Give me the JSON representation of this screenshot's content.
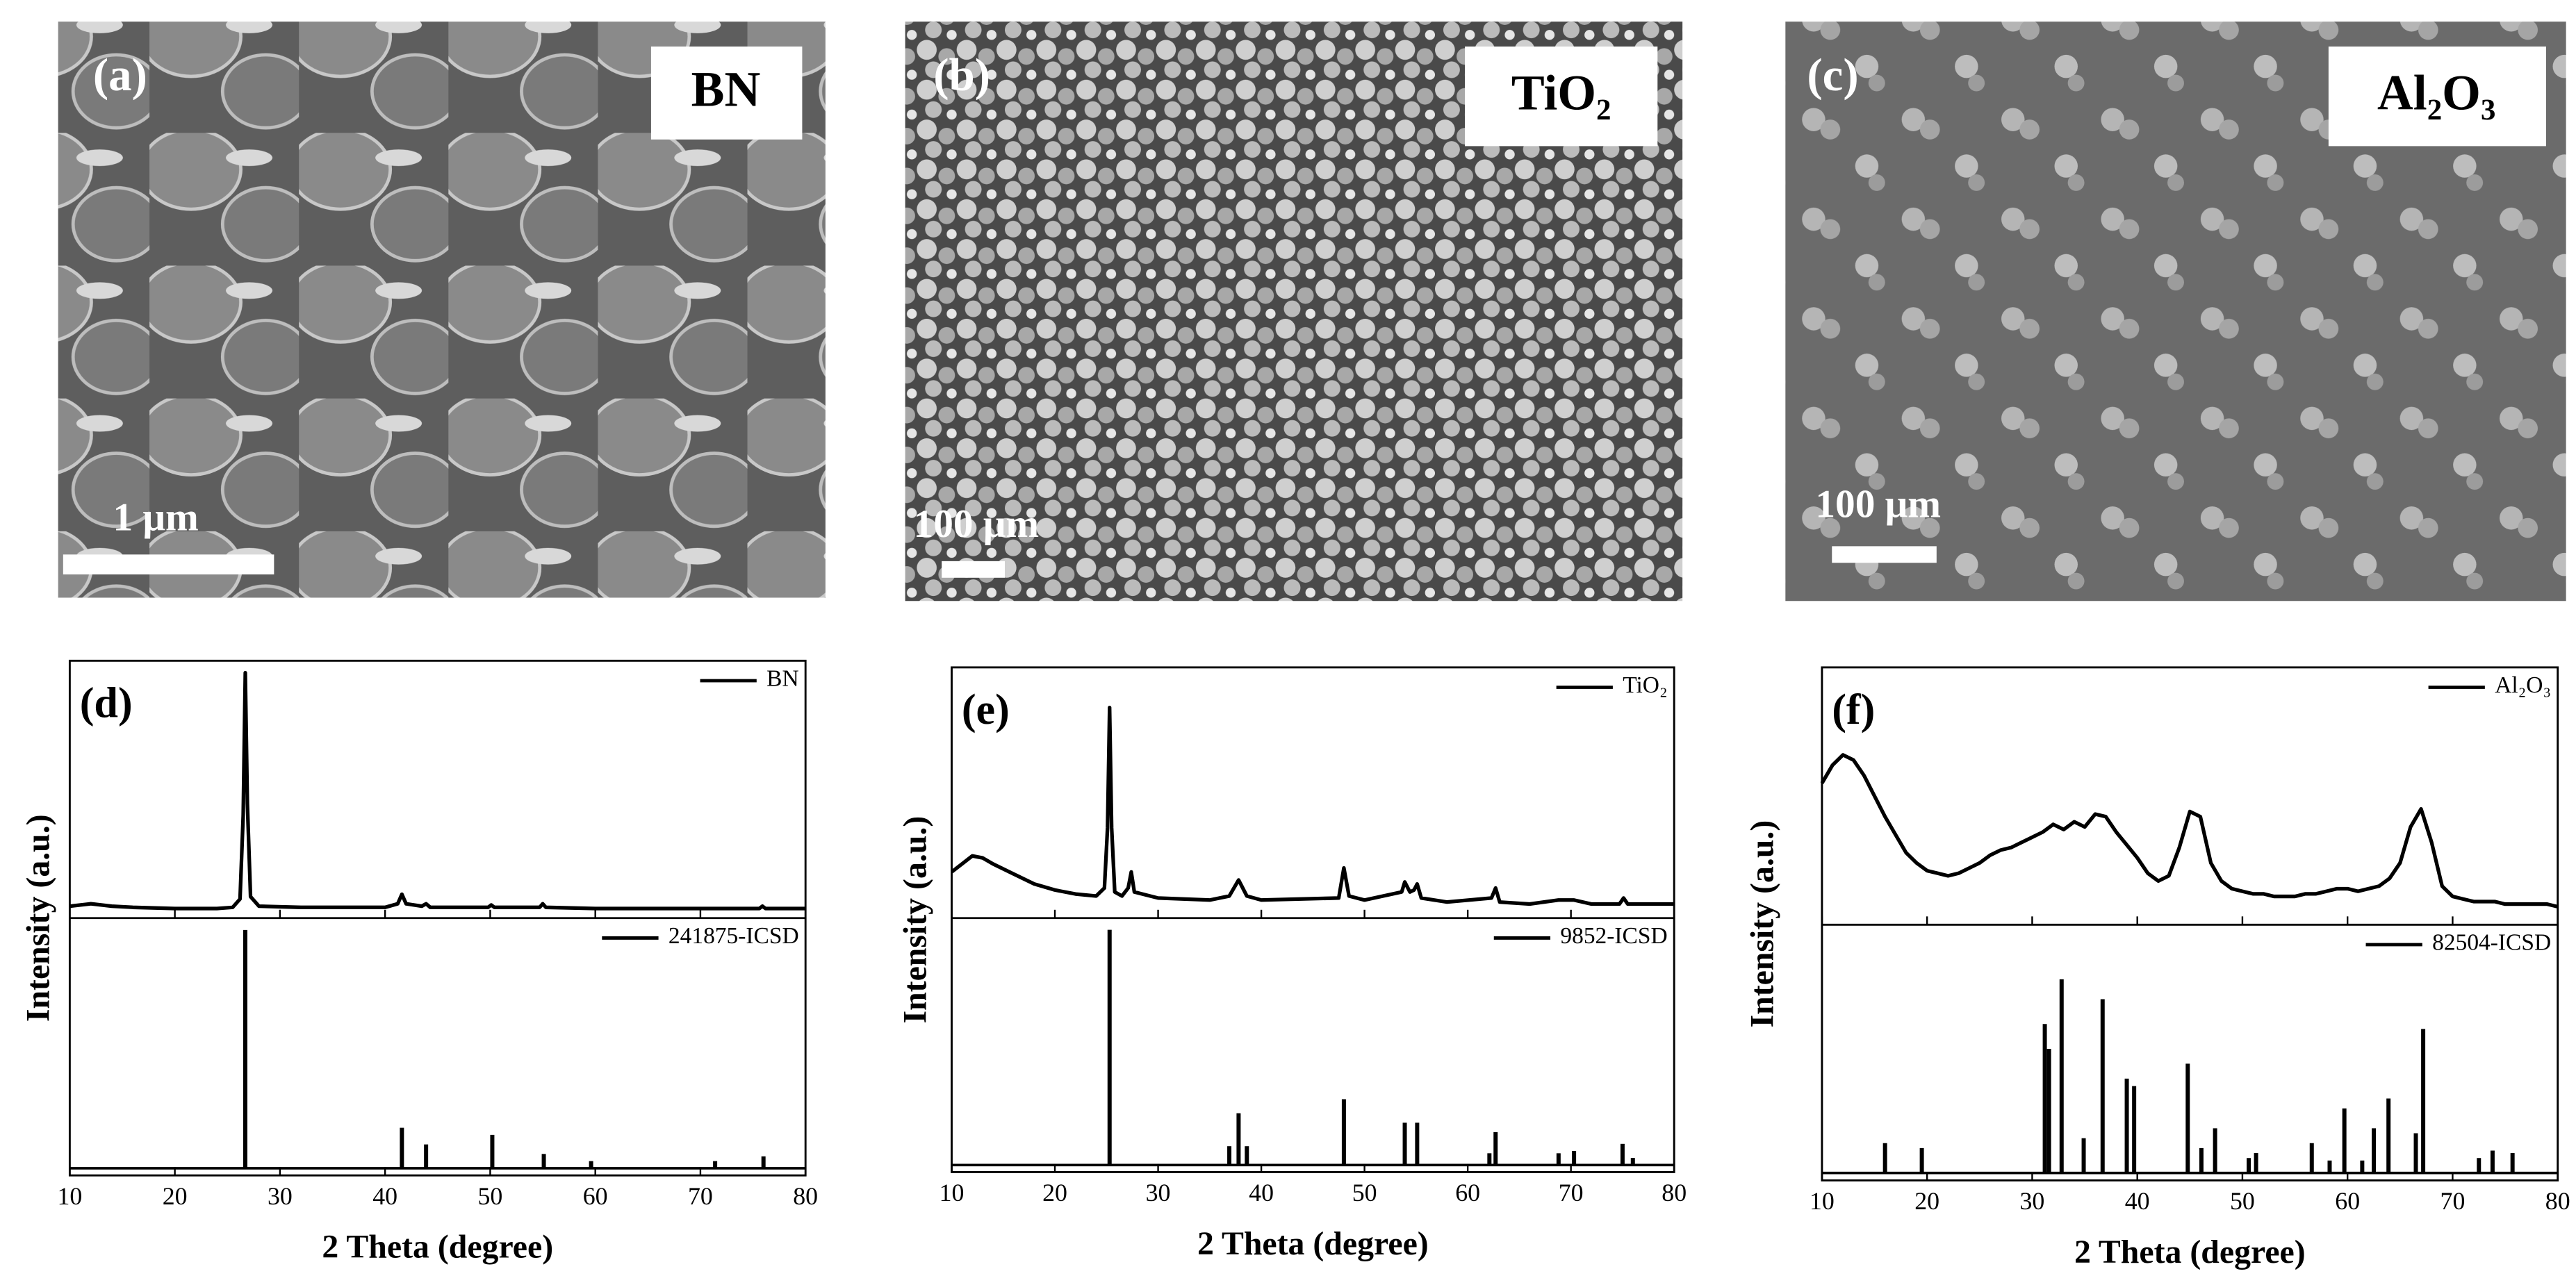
{
  "images": [
    {
      "panel": "(a)",
      "material": "BN",
      "scale_bar": "1 μm"
    },
    {
      "panel": "(b)",
      "material": "TiO₂",
      "scale_bar": "100 μm"
    },
    {
      "panel": "(c)",
      "material": "Al₂O₃",
      "scale_bar": "100 μm"
    }
  ],
  "chart_data": [
    {
      "type": "line",
      "panel_label": "(d)",
      "xlabel": "2 Theta (degree)",
      "ylabel": "Intensity (a.u.)",
      "xlim": [
        10,
        80
      ],
      "xticks": [
        10,
        20,
        30,
        40,
        50,
        60,
        70,
        80
      ],
      "subplots": [
        {
          "ylim": [
            -3,
            105
          ],
          "series": [
            {
              "name": "BN",
              "color": "#000000",
              "style": "line",
              "x": [
                10,
                12,
                14,
                16,
                20,
                24,
                25.5,
                26.2,
                26.5,
                26.7,
                26.9,
                27.2,
                28,
                32,
                40,
                41.2,
                41.6,
                42,
                43.5,
                43.9,
                44.3,
                49.8,
                50.1,
                50.4,
                54.7,
                55,
                55.3,
                60,
                75.6,
                75.9,
                76.2,
                80
              ],
              "values": [
                2,
                3,
                2,
                1.5,
                1,
                1,
                1.5,
                5,
                40,
                100,
                45,
                6,
                2,
                1.5,
                1.5,
                3,
                7,
                3,
                2,
                3,
                1.5,
                1.5,
                2.5,
                1.5,
                1.5,
                3,
                1.5,
                1,
                1,
                2,
                1,
                1
              ]
            }
          ]
        },
        {
          "ylim": [
            -3,
            105
          ],
          "series": [
            {
              "name": "241875-ICSD",
              "color": "#000000",
              "style": "stick",
              "x": [
                26.7,
                41.6,
                43.9,
                50.2,
                55.1,
                59.6,
                71.4,
                76.0
              ],
              "values": [
                100,
                17,
                10,
                14,
                6,
                3,
                3,
                5
              ]
            }
          ]
        }
      ]
    },
    {
      "type": "line",
      "panel_label": "(e)",
      "xlabel": "2 Theta (degree)",
      "ylabel": "Intensity (a.u.)",
      "xlim": [
        10,
        80
      ],
      "xticks": [
        10,
        20,
        30,
        40,
        50,
        60,
        70,
        80
      ],
      "subplots": [
        {
          "ylim": [
            -5,
            120
          ],
          "series": [
            {
              "name": "TiO₂",
              "color": "#000000",
              "style": "line",
              "x": [
                10,
                11,
                12,
                13,
                14,
                16,
                18,
                20,
                22,
                24,
                24.8,
                25.1,
                25.3,
                25.5,
                25.8,
                26.5,
                27.1,
                27.4,
                27.7,
                30,
                35,
                36.9,
                37.8,
                38.6,
                40,
                47.5,
                48,
                48.5,
                50,
                53.6,
                53.9,
                54.4,
                54.8,
                55.1,
                55.5,
                58,
                62.3,
                62.7,
                63.1,
                66,
                68.8,
                70.3,
                72,
                74.7,
                75.1,
                75.5,
                80
              ],
              "values": [
                18,
                22,
                26,
                25,
                22,
                17,
                12,
                9,
                7,
                6,
                10,
                40,
                100,
                40,
                8,
                6,
                10,
                18,
                8,
                5,
                4,
                6,
                14,
                6,
                4,
                5,
                20,
                6,
                4,
                8,
                13,
                8,
                9,
                12,
                5,
                3,
                5,
                10,
                3,
                2,
                4,
                4,
                2,
                2,
                5,
                2,
                2
              ]
            }
          ]
        },
        {
          "ylim": [
            -3,
            105
          ],
          "series": [
            {
              "name": "9852-ICSD",
              "color": "#000000",
              "style": "stick",
              "x": [
                25.3,
                36.9,
                37.8,
                38.6,
                48.0,
                53.9,
                55.1,
                62.1,
                62.7,
                68.8,
                70.3,
                75.0,
                76.0
              ],
              "values": [
                100,
                8,
                22,
                8,
                28,
                18,
                18,
                5,
                14,
                5,
                6,
                9,
                3
              ]
            }
          ]
        }
      ]
    },
    {
      "type": "line",
      "panel_label": "(f)",
      "xlabel": "2 Theta (degree)",
      "ylabel": "Intensity (a.u.)",
      "xlim": [
        10,
        80
      ],
      "xticks": [
        10,
        20,
        30,
        40,
        50,
        60,
        70,
        80
      ],
      "subplots": [
        {
          "ylim": [
            0,
            100
          ],
          "series": [
            {
              "name": "Al₂O₃",
              "color": "#000000",
              "style": "line",
              "x": [
                10,
                11,
                12,
                13,
                14,
                15,
                16,
                17,
                18,
                19,
                20,
                21,
                22,
                23,
                24,
                25,
                26,
                27,
                28,
                29,
                30,
                31,
                32,
                33,
                34,
                35,
                36,
                37,
                38,
                39,
                40,
                41,
                42,
                43,
                44,
                45,
                46,
                47,
                48,
                49,
                50,
                51,
                52,
                53,
                54,
                55,
                56,
                57,
                58,
                59,
                60,
                61,
                62,
                63,
                64,
                65,
                66,
                67,
                68,
                69,
                70,
                71,
                72,
                73,
                74,
                75,
                76,
                77,
                78,
                79,
                80
              ],
              "values": [
                55,
                62,
                66,
                64,
                58,
                50,
                42,
                35,
                28,
                24,
                21,
                20,
                19,
                20,
                22,
                24,
                27,
                29,
                30,
                32,
                34,
                36,
                39,
                37,
                40,
                38,
                43,
                42,
                36,
                31,
                26,
                20,
                17,
                19,
                30,
                44,
                42,
                24,
                17,
                14,
                13,
                12,
                12,
                11,
                11,
                11,
                12,
                12,
                13,
                14,
                14,
                13,
                14,
                15,
                18,
                24,
                38,
                45,
                32,
                15,
                11,
                10,
                9,
                9,
                9,
                8,
                8,
                8,
                8,
                8,
                7
              ]
            }
          ]
        },
        {
          "ylim": [
            -3,
            100
          ],
          "series": [
            {
              "name": "82504-ICSD",
              "color": "#000000",
              "style": "stick",
              "x": [
                16.0,
                19.5,
                31.2,
                31.6,
                32.8,
                34.9,
                36.7,
                39.0,
                39.7,
                44.8,
                46.1,
                47.4,
                50.6,
                51.3,
                56.6,
                58.3,
                59.7,
                61.4,
                62.5,
                63.9,
                66.5,
                67.2,
                72.5,
                73.8,
                75.7
              ],
              "values": [
                12,
                10,
                60,
                50,
                78,
                14,
                70,
                38,
                35,
                44,
                10,
                18,
                6,
                8,
                12,
                5,
                26,
                5,
                18,
                30,
                16,
                58,
                6,
                9,
                8
              ]
            }
          ]
        }
      ]
    }
  ]
}
